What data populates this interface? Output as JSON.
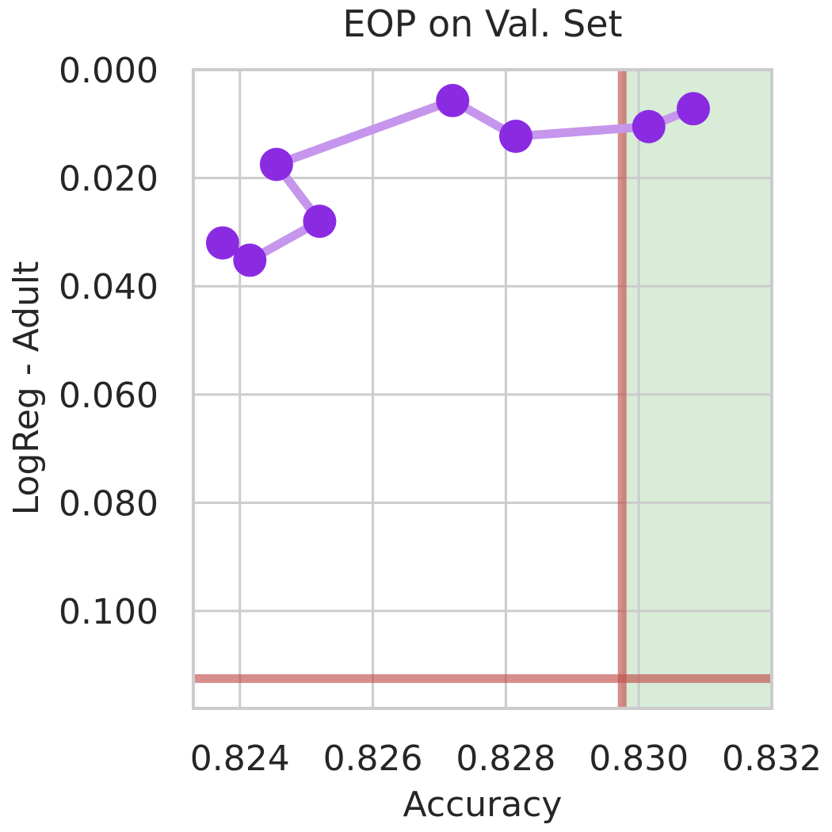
{
  "chart_data": {
    "type": "line",
    "title": "EOP on Val. Set",
    "xlabel": "Accuracy",
    "ylabel": "LogReg - Adult",
    "xlim": [
      0.8233,
      0.832
    ],
    "ylim": [
      0.118,
      0.0
    ],
    "y_inverted": true,
    "x_ticks": [
      "0.824",
      "0.826",
      "0.828",
      "0.830",
      "0.832"
    ],
    "y_ticks": [
      "0.000",
      "0.020",
      "0.040",
      "0.060",
      "0.080",
      "0.100"
    ],
    "grid": true,
    "series": [
      {
        "color": "#8a2be2",
        "line_color": "#c596ec",
        "points": [
          {
            "x": 0.82374,
            "y": 0.032
          },
          {
            "x": 0.82415,
            "y": 0.0352
          },
          {
            "x": 0.8252,
            "y": 0.028
          },
          {
            "x": 0.82455,
            "y": 0.0175
          },
          {
            "x": 0.8272,
            "y": 0.0057
          },
          {
            "x": 0.82815,
            "y": 0.0123
          },
          {
            "x": 0.83015,
            "y": 0.0105
          },
          {
            "x": 0.83082,
            "y": 0.0072
          }
        ]
      }
    ],
    "reference_lines": {
      "vertical_x": 0.82975,
      "horizontal_y": 0.1125,
      "color": "#c0504d"
    },
    "shaded_region": {
      "x_from": 0.82975,
      "x_to": 0.832,
      "color": "#d8ecd8"
    }
  }
}
